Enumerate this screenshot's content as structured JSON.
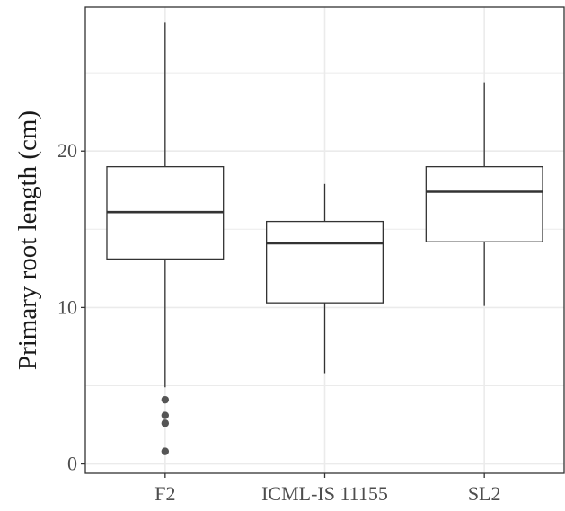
{
  "chart_data": {
    "type": "boxplot",
    "title": "",
    "xlabel": "",
    "ylabel": "Primary root length (cm)",
    "categories": [
      "F2",
      "ICML-IS 11155",
      "SL2"
    ],
    "y_ticks": [
      0,
      10,
      20
    ],
    "ylim": [
      -0.6,
      29.2
    ],
    "grid": true,
    "legend": "none",
    "boxes": [
      {
        "category": "F2",
        "whisker_low": 4.9,
        "q1": 13.1,
        "median": 16.1,
        "q3": 19.0,
        "whisker_high": 28.2,
        "outliers": [
          4.1,
          3.1,
          2.6,
          0.8
        ]
      },
      {
        "category": "ICML-IS 11155",
        "whisker_low": 5.8,
        "q1": 10.3,
        "median": 14.1,
        "q3": 15.5,
        "whisker_high": 17.9,
        "outliers": []
      },
      {
        "category": "SL2",
        "whisker_low": 10.1,
        "q1": 14.2,
        "median": 17.4,
        "q3": 19.0,
        "whisker_high": 24.4,
        "outliers": []
      }
    ],
    "colors": {
      "box_stroke": "#333333",
      "box_fill": "#ffffff",
      "outlier": "#555555",
      "grid": "#ebebeb",
      "panel_border": "#333333"
    }
  }
}
